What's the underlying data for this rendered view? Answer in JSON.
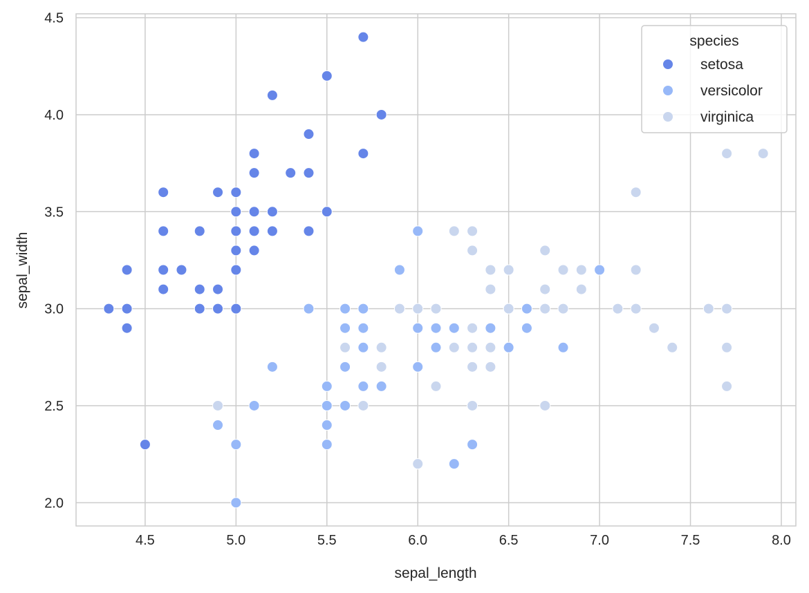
{
  "chart_data": {
    "type": "scatter",
    "xlabel": "sepal_length",
    "ylabel": "sepal_width",
    "xlim": [
      4.12,
      8.08
    ],
    "ylim": [
      1.88,
      4.52
    ],
    "xticks": [
      "4.5",
      "5.0",
      "5.5",
      "6.0",
      "6.5",
      "7.0",
      "7.5",
      "8.0"
    ],
    "yticks": [
      "2.0",
      "2.5",
      "3.0",
      "3.5",
      "4.0",
      "4.5"
    ],
    "grid": true,
    "legend": {
      "title": "species",
      "placement": "top-right"
    },
    "series": [
      {
        "name": "setosa",
        "color": "#6585e8",
        "points": [
          [
            5.1,
            3.5
          ],
          [
            4.9,
            3.0
          ],
          [
            4.7,
            3.2
          ],
          [
            4.6,
            3.1
          ],
          [
            5.0,
            3.6
          ],
          [
            5.4,
            3.9
          ],
          [
            4.6,
            3.4
          ],
          [
            5.0,
            3.4
          ],
          [
            4.4,
            2.9
          ],
          [
            4.9,
            3.1
          ],
          [
            5.4,
            3.7
          ],
          [
            4.8,
            3.4
          ],
          [
            4.8,
            3.0
          ],
          [
            4.3,
            3.0
          ],
          [
            5.8,
            4.0
          ],
          [
            5.7,
            4.4
          ],
          [
            5.4,
            3.9
          ],
          [
            5.1,
            3.5
          ],
          [
            5.7,
            3.8
          ],
          [
            5.1,
            3.8
          ],
          [
            5.4,
            3.4
          ],
          [
            5.1,
            3.7
          ],
          [
            4.6,
            3.6
          ],
          [
            5.1,
            3.3
          ],
          [
            4.8,
            3.4
          ],
          [
            5.0,
            3.0
          ],
          [
            5.0,
            3.4
          ],
          [
            5.2,
            3.5
          ],
          [
            5.2,
            3.4
          ],
          [
            4.7,
            3.2
          ],
          [
            4.8,
            3.1
          ],
          [
            5.4,
            3.4
          ],
          [
            5.2,
            4.1
          ],
          [
            5.5,
            4.2
          ],
          [
            4.9,
            3.1
          ],
          [
            5.0,
            3.2
          ],
          [
            5.5,
            3.5
          ],
          [
            4.9,
            3.6
          ],
          [
            4.4,
            3.0
          ],
          [
            5.1,
            3.4
          ],
          [
            5.0,
            3.5
          ],
          [
            4.5,
            2.3
          ],
          [
            4.4,
            3.2
          ],
          [
            5.0,
            3.5
          ],
          [
            5.1,
            3.8
          ],
          [
            4.8,
            3.0
          ],
          [
            5.1,
            3.8
          ],
          [
            4.6,
            3.2
          ],
          [
            5.3,
            3.7
          ],
          [
            5.0,
            3.3
          ]
        ]
      },
      {
        "name": "versicolor",
        "color": "#97b8f8",
        "points": [
          [
            7.0,
            3.2
          ],
          [
            6.4,
            3.2
          ],
          [
            6.9,
            3.1
          ],
          [
            5.5,
            2.3
          ],
          [
            6.5,
            2.8
          ],
          [
            5.7,
            2.8
          ],
          [
            6.3,
            3.3
          ],
          [
            4.9,
            2.4
          ],
          [
            6.6,
            2.9
          ],
          [
            5.2,
            2.7
          ],
          [
            5.0,
            2.0
          ],
          [
            5.9,
            3.0
          ],
          [
            6.0,
            2.2
          ],
          [
            6.1,
            2.9
          ],
          [
            5.6,
            2.9
          ],
          [
            6.7,
            3.1
          ],
          [
            5.6,
            3.0
          ],
          [
            5.8,
            2.7
          ],
          [
            6.2,
            2.2
          ],
          [
            5.6,
            2.5
          ],
          [
            5.9,
            3.2
          ],
          [
            6.1,
            2.8
          ],
          [
            6.3,
            2.5
          ],
          [
            6.1,
            2.8
          ],
          [
            6.4,
            2.9
          ],
          [
            6.6,
            3.0
          ],
          [
            6.8,
            2.8
          ],
          [
            6.7,
            3.0
          ],
          [
            6.0,
            2.9
          ],
          [
            5.7,
            2.6
          ],
          [
            5.5,
            2.4
          ],
          [
            5.5,
            2.4
          ],
          [
            5.8,
            2.7
          ],
          [
            6.0,
            2.7
          ],
          [
            5.4,
            3.0
          ],
          [
            6.0,
            3.4
          ],
          [
            6.7,
            3.1
          ],
          [
            6.3,
            2.3
          ],
          [
            5.6,
            3.0
          ],
          [
            5.5,
            2.5
          ],
          [
            5.5,
            2.6
          ],
          [
            6.1,
            3.0
          ],
          [
            5.8,
            2.6
          ],
          [
            5.0,
            2.3
          ],
          [
            5.6,
            2.7
          ],
          [
            5.7,
            3.0
          ],
          [
            5.7,
            2.9
          ],
          [
            6.2,
            2.9
          ],
          [
            5.1,
            2.5
          ],
          [
            5.7,
            2.8
          ]
        ]
      },
      {
        "name": "virginica",
        "color": "#c9d6ee",
        "points": [
          [
            6.3,
            3.3
          ],
          [
            5.8,
            2.7
          ],
          [
            7.1,
            3.0
          ],
          [
            6.3,
            2.9
          ],
          [
            6.5,
            3.0
          ],
          [
            7.6,
            3.0
          ],
          [
            4.9,
            2.5
          ],
          [
            7.3,
            2.9
          ],
          [
            6.7,
            2.5
          ],
          [
            7.2,
            3.6
          ],
          [
            6.5,
            3.2
          ],
          [
            6.4,
            2.7
          ],
          [
            6.8,
            3.0
          ],
          [
            5.7,
            2.5
          ],
          [
            5.8,
            2.8
          ],
          [
            6.4,
            3.2
          ],
          [
            6.5,
            3.0
          ],
          [
            7.7,
            3.8
          ],
          [
            7.7,
            2.6
          ],
          [
            6.0,
            2.2
          ],
          [
            6.9,
            3.2
          ],
          [
            5.6,
            2.8
          ],
          [
            7.7,
            2.8
          ],
          [
            6.3,
            2.7
          ],
          [
            6.7,
            3.3
          ],
          [
            7.2,
            3.2
          ],
          [
            6.2,
            2.8
          ],
          [
            6.1,
            3.0
          ],
          [
            6.4,
            2.8
          ],
          [
            7.2,
            3.0
          ],
          [
            7.4,
            2.8
          ],
          [
            7.9,
            3.8
          ],
          [
            6.4,
            2.8
          ],
          [
            6.3,
            2.8
          ],
          [
            6.1,
            2.6
          ],
          [
            7.7,
            3.0
          ],
          [
            6.3,
            3.4
          ],
          [
            6.4,
            3.1
          ],
          [
            6.0,
            3.0
          ],
          [
            6.9,
            3.1
          ],
          [
            6.7,
            3.1
          ],
          [
            6.9,
            3.1
          ],
          [
            5.8,
            2.7
          ],
          [
            6.8,
            3.2
          ],
          [
            6.7,
            3.3
          ],
          [
            6.7,
            3.0
          ],
          [
            6.3,
            2.5
          ],
          [
            6.5,
            3.0
          ],
          [
            6.2,
            3.4
          ],
          [
            5.9,
            3.0
          ]
        ]
      }
    ]
  }
}
